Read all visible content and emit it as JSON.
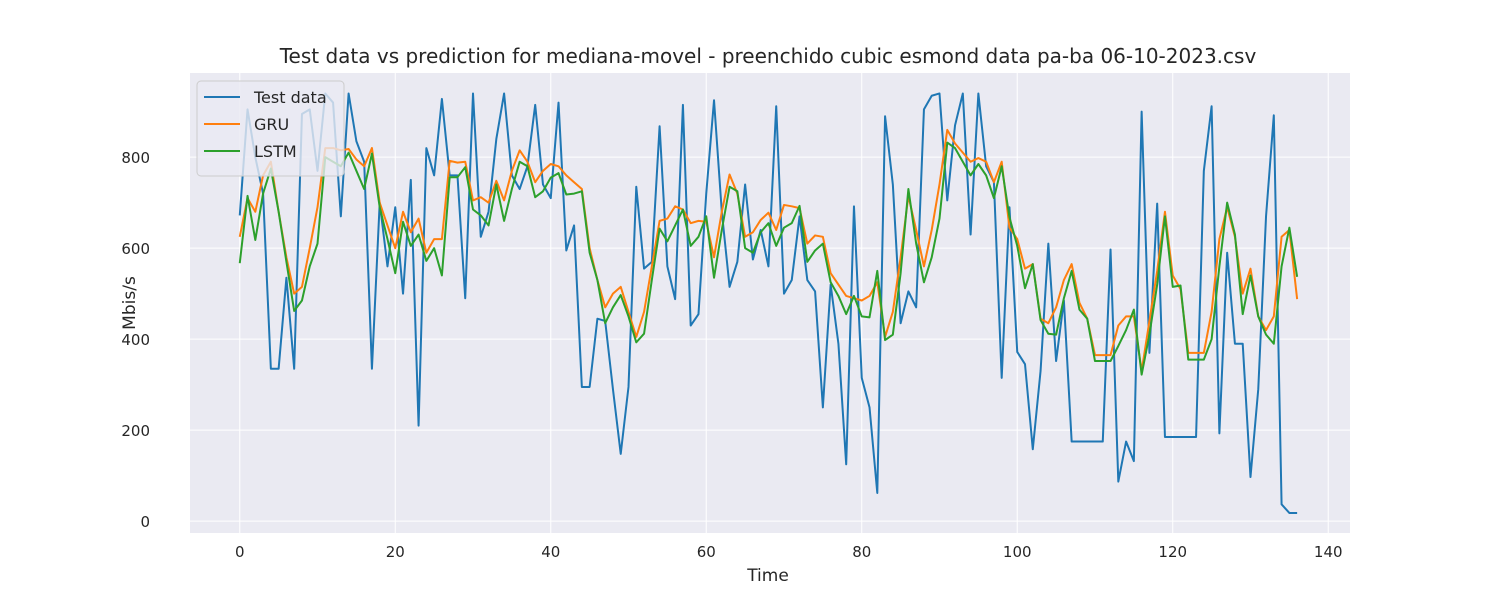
{
  "chart_data": {
    "type": "line",
    "title": "Test data vs prediction for mediana-movel - preenchido cubic esmond data pa-ba 06-10-2023.csv",
    "x_label": "Time",
    "y_label": "Mbis/s",
    "x": [
      0,
      1,
      2,
      3,
      4,
      5,
      6,
      7,
      8,
      9,
      10,
      11,
      12,
      13,
      14,
      15,
      16,
      17,
      18,
      19,
      20,
      21,
      22,
      23,
      24,
      25,
      26,
      27,
      28,
      29,
      30,
      31,
      32,
      33,
      34,
      35,
      36,
      37,
      38,
      39,
      40,
      41,
      42,
      43,
      44,
      45,
      46,
      47,
      48,
      49,
      50,
      51,
      52,
      53,
      54,
      55,
      56,
      57,
      58,
      59,
      60,
      61,
      62,
      63,
      64,
      65,
      66,
      67,
      68,
      69,
      70,
      71,
      72,
      73,
      74,
      75,
      76,
      77,
      78,
      79,
      80,
      81,
      82,
      83,
      84,
      85,
      86,
      87,
      88,
      89,
      90,
      91,
      92,
      93,
      94,
      95,
      96,
      97,
      98,
      99,
      100,
      101,
      102,
      103,
      104,
      105,
      106,
      107,
      108,
      109,
      110,
      111,
      112,
      113,
      114,
      115,
      116,
      117,
      118,
      119,
      120,
      121,
      122,
      123,
      124,
      125,
      126,
      127,
      128,
      129,
      130,
      131,
      132,
      133,
      134,
      135,
      136
    ],
    "series": [
      {
        "name": "Test data",
        "color": "#1f77b4",
        "values": [
          672,
          905,
          800,
          720,
          335,
          335,
          535,
          335,
          895,
          905,
          770,
          940,
          920,
          670,
          940,
          835,
          790,
          335,
          700,
          560,
          690,
          500,
          750,
          210,
          820,
          760,
          928,
          760,
          760,
          490,
          940,
          625,
          680,
          840,
          940,
          760,
          730,
          780,
          915,
          740,
          710,
          920,
          595,
          650,
          295,
          295,
          445,
          440,
          290,
          148,
          295,
          735,
          555,
          570,
          868,
          560,
          488,
          915,
          430,
          455,
          720,
          925,
          680,
          515,
          570,
          740,
          575,
          640,
          560,
          912,
          500,
          530,
          670,
          530,
          505,
          250,
          520,
          390,
          125,
          692,
          315,
          250,
          62,
          890,
          740,
          435,
          505,
          470,
          905,
          935,
          940,
          705,
          870,
          940,
          630,
          940,
          780,
          745,
          315,
          690,
          372,
          345,
          158,
          330,
          610,
          352,
          485,
          175,
          175,
          175,
          175,
          175,
          597,
          87,
          175,
          132,
          900,
          370,
          698,
          185,
          185,
          185,
          185,
          185,
          770,
          912,
          193,
          590,
          390,
          390,
          97,
          290,
          670,
          892,
          37,
          18,
          18
        ]
      },
      {
        "name": "GRU",
        "color": "#ff7f0e",
        "values": [
          625,
          710,
          680,
          760,
          790,
          680,
          580,
          500,
          515,
          600,
          690,
          820,
          820,
          815,
          818,
          795,
          780,
          820,
          700,
          650,
          600,
          680,
          635,
          665,
          590,
          620,
          620,
          792,
          788,
          790,
          705,
          712,
          700,
          748,
          705,
          770,
          815,
          790,
          745,
          770,
          785,
          780,
          760,
          745,
          730,
          600,
          530,
          470,
          500,
          515,
          460,
          405,
          460,
          560,
          660,
          665,
          692,
          685,
          655,
          660,
          658,
          580,
          680,
          762,
          720,
          625,
          635,
          662,
          678,
          640,
          695,
          692,
          688,
          610,
          628,
          625,
          545,
          520,
          495,
          490,
          485,
          495,
          525,
          405,
          460,
          580,
          715,
          640,
          560,
          640,
          740,
          860,
          830,
          810,
          790,
          798,
          790,
          745,
          790,
          645,
          620,
          555,
          565,
          445,
          435,
          470,
          530,
          565,
          480,
          445,
          365,
          365,
          365,
          430,
          450,
          450,
          330,
          440,
          550,
          680,
          540,
          510,
          370,
          370,
          370,
          460,
          620,
          690,
          625,
          500,
          555,
          450,
          420,
          450,
          625,
          640,
          488
        ]
      },
      {
        "name": "LSTM",
        "color": "#2ca02c",
        "values": [
          567,
          715,
          618,
          720,
          775,
          680,
          570,
          462,
          485,
          560,
          610,
          800,
          790,
          780,
          810,
          770,
          730,
          808,
          690,
          620,
          545,
          658,
          605,
          630,
          572,
          600,
          540,
          756,
          756,
          778,
          685,
          672,
          650,
          740,
          660,
          730,
          790,
          780,
          712,
          725,
          755,
          765,
          718,
          720,
          725,
          590,
          530,
          435,
          470,
          497,
          450,
          393,
          412,
          530,
          643,
          615,
          650,
          685,
          605,
          625,
          670,
          535,
          640,
          735,
          725,
          600,
          590,
          635,
          655,
          605,
          645,
          655,
          693,
          570,
          595,
          610,
          525,
          495,
          455,
          495,
          450,
          448,
          550,
          398,
          410,
          545,
          730,
          610,
          525,
          580,
          665,
          832,
          820,
          790,
          760,
          785,
          760,
          710,
          780,
          668,
          605,
          512,
          565,
          442,
          412,
          410,
          490,
          550,
          465,
          445,
          352,
          352,
          352,
          385,
          420,
          465,
          322,
          410,
          520,
          670,
          515,
          518,
          355,
          355,
          355,
          400,
          560,
          700,
          630,
          455,
          540,
          450,
          410,
          390,
          560,
          645,
          537
        ]
      }
    ],
    "xlim": [
      -6.4,
      142.8
    ],
    "ylim": [
      -26,
      985
    ],
    "xticks": [
      0,
      20,
      40,
      60,
      80,
      100,
      120,
      140
    ],
    "yticks": [
      0,
      200,
      400,
      600,
      800
    ],
    "grid": true,
    "legend": "upper left"
  }
}
